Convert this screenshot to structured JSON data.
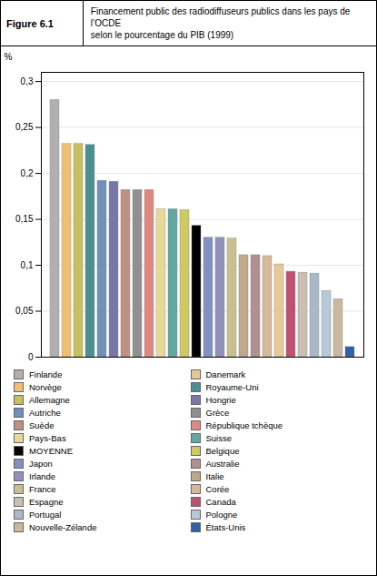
{
  "chart_data": {
    "type": "bar",
    "title": "Financement public des radiodiffuseurs publics dans les pays de l’OCDE",
    "subtitle": "selon le pourcentage du PIB (1999)",
    "annotations": [
      "Figure 6.1"
    ],
    "ylabel": "%",
    "categories": [
      "Finlande",
      "Norvège",
      "Allemagne",
      "Royaume-Uni",
      "Autriche",
      "Hongrie",
      "Suède",
      "Grèce",
      "République tchèque",
      "Pays-Bas",
      "Suisse",
      "Belgique",
      "MOYENNE",
      "Japon",
      "Irlande",
      "France",
      "Italie",
      "Australie",
      "Corée",
      "Danemark",
      "Canada",
      "Espagne",
      "Portugal",
      "Pologne",
      "Nouvelle-Zélande",
      "États-Unis"
    ],
    "values": [
      0.28,
      0.232,
      0.232,
      0.231,
      0.192,
      0.191,
      0.182,
      0.182,
      0.182,
      0.161,
      0.161,
      0.16,
      0.143,
      0.13,
      0.13,
      0.129,
      0.111,
      0.111,
      0.11,
      0.101,
      0.093,
      0.092,
      0.091,
      0.072,
      0.063,
      0.011
    ],
    "colors": [
      "#b0b0b0",
      "#f0c070",
      "#c8c060",
      "#4a9090",
      "#7090b8",
      "#7878a8",
      "#c09080",
      "#909090",
      "#e08880",
      "#e8d898",
      "#60a8a0",
      "#d0c860",
      "#000000",
      "#8090c0",
      "#9090b8",
      "#c8c090",
      "#c0a888",
      "#b09090",
      "#d8b898",
      "#e8c898",
      "#c05070",
      "#c8c0b0",
      "#a8b8c8",
      "#b8c8d8",
      "#c8b8a0",
      "#3060a8"
    ],
    "ylim": [
      0,
      0.31
    ],
    "yticks": [
      0,
      {
        "value": 0.05,
        "label": "0,05"
      },
      {
        "value": 0.1,
        "label": "0,1"
      },
      {
        "value": 0.15,
        "label": "0,15"
      },
      {
        "value": 0.2,
        "label": "0,2"
      },
      {
        "value": 0.25,
        "label": "0,25"
      },
      {
        "value": 0.3,
        "label": "0,3"
      }
    ],
    "grid": true,
    "tick_labels": "y",
    "legend": "bottom",
    "legend_columns": [
      [
        "Finlande",
        "Norvège",
        "Allemagne",
        "Autriche",
        "Suède",
        "Pays-Bas",
        "MOYENNE",
        "Japon",
        "Irlande",
        "France",
        "Espagne",
        "Portugal",
        "Nouvelle-Zélande"
      ],
      [
        "Danemark",
        "Royaume-Uni",
        "Hongrie",
        "Grèce",
        "République tchèque",
        "Suisse",
        "Belgique",
        "Australie",
        "Italie",
        "Corée",
        "Canada",
        "Pologne",
        "États-Unis"
      ]
    ]
  }
}
